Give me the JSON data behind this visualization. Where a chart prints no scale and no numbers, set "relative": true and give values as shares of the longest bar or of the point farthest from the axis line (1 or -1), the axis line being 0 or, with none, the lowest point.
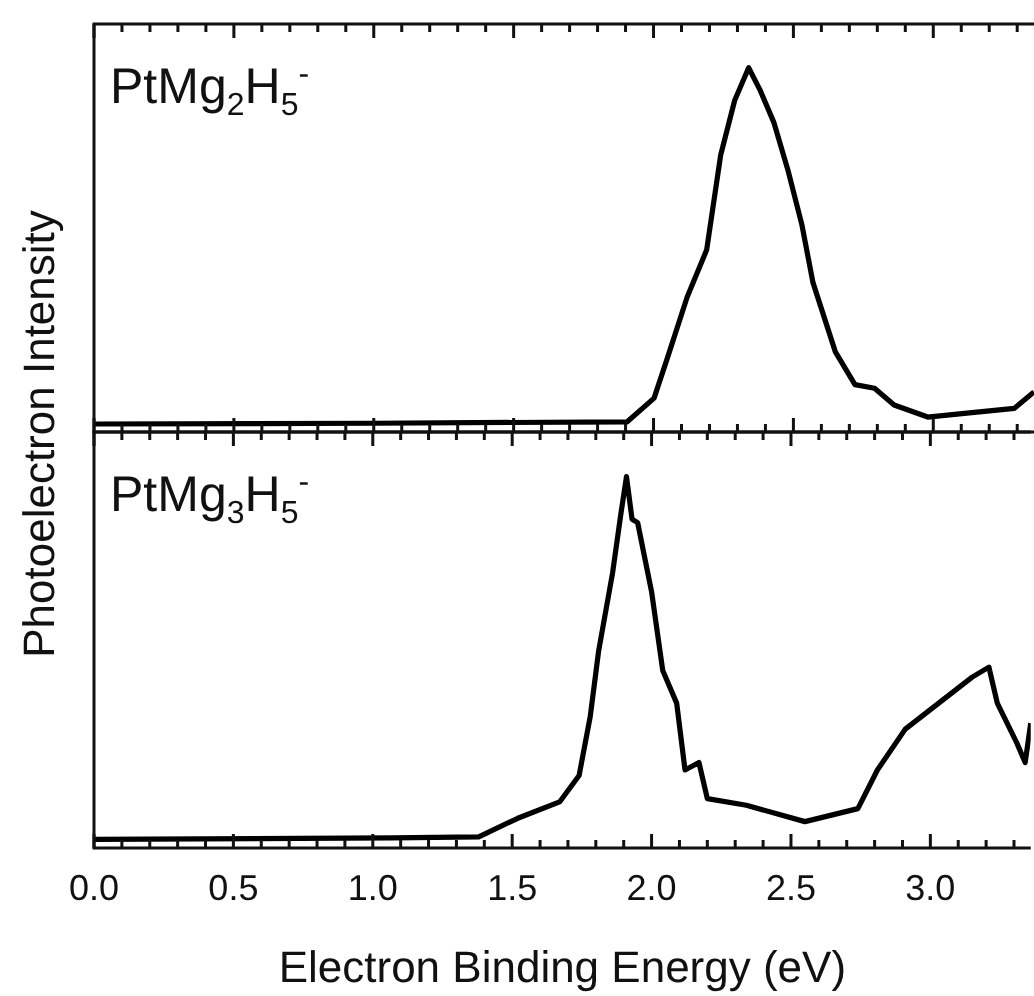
{
  "chart_data": [
    {
      "type": "line",
      "relative": true,
      "ylabel": "Photoelectron Intensity",
      "annotations": [
        "PtMg$_{2}$H$_{5}$$^{-}$"
      ],
      "xlim": [
        0,
        3.36
      ],
      "tick_labels": false,
      "marker": "none",
      "legend": false,
      "grid": false,
      "xticks": [
        0,
        {
          "value": 0.1,
          "label": null
        },
        {
          "value": 0.2,
          "label": null
        },
        {
          "value": 0.3,
          "label": null
        },
        {
          "value": 0.4,
          "label": null
        },
        0.5,
        {
          "value": 0.6,
          "label": null
        },
        {
          "value": 0.7,
          "label": null
        },
        {
          "value": 0.8,
          "label": null
        },
        {
          "value": 0.9,
          "label": null
        },
        1,
        {
          "value": 1.1,
          "label": null
        },
        {
          "value": 1.2,
          "label": null
        },
        {
          "value": 1.3,
          "label": null
        },
        {
          "value": 1.4,
          "label": null
        },
        1.5,
        {
          "value": 1.6,
          "label": null
        },
        {
          "value": 1.7,
          "label": null
        },
        {
          "value": 1.8,
          "label": null
        },
        {
          "value": 1.9,
          "label": null
        },
        2,
        {
          "value": 2.1,
          "label": null
        },
        {
          "value": 2.2,
          "label": null
        },
        {
          "value": 2.3,
          "label": null
        },
        {
          "value": 2.4,
          "label": null
        },
        2.5,
        {
          "value": 2.6,
          "label": null
        },
        {
          "value": 2.7,
          "label": null
        },
        {
          "value": 2.8,
          "label": null
        },
        {
          "value": 2.9,
          "label": null
        },
        3,
        {
          "value": 3.1,
          "label": null
        },
        {
          "value": 3.2,
          "label": null
        },
        {
          "value": 3.3,
          "label": null
        }
      ],
      "series": [
        {
          "color": "#000000",
          "x": [
            0,
            1.0,
            1.906,
            2.002,
            2.05,
            2.12,
            2.19,
            2.24,
            2.29,
            2.34,
            2.38,
            2.43,
            2.48,
            2.53,
            2.57,
            2.65,
            2.72,
            2.79,
            2.86,
            2.98,
            3.12,
            3.29,
            3.36
          ],
          "values": [
            0.022,
            0.024,
            0.028,
            0.093,
            0.204,
            0.37,
            0.5,
            0.76,
            0.91,
            1.0,
            0.94,
            0.85,
            0.72,
            0.57,
            0.41,
            0.22,
            0.13,
            0.12,
            0.074,
            0.041,
            0.052,
            0.065,
            0.11
          ]
        }
      ]
    },
    {
      "type": "line",
      "relative": true,
      "xlabel": "Electron Binding Energy (eV)",
      "annotations": [
        "PtMg$_{3}$H$_{5}$$^{-}$"
      ],
      "xlim": [
        0,
        3.36
      ],
      "tick_labels": "x",
      "marker": "none",
      "legend": false,
      "grid": false,
      "xticks": [
        {
          "value": 0,
          "label": "0.0"
        },
        {
          "value": 0.1,
          "label": null
        },
        {
          "value": 0.2,
          "label": null
        },
        {
          "value": 0.3,
          "label": null
        },
        {
          "value": 0.4,
          "label": null
        },
        0.5,
        {
          "value": 0.6,
          "label": null
        },
        {
          "value": 0.7,
          "label": null
        },
        {
          "value": 0.8,
          "label": null
        },
        {
          "value": 0.9,
          "label": null
        },
        {
          "value": 1,
          "label": "1.0"
        },
        {
          "value": 1.1,
          "label": null
        },
        {
          "value": 1.2,
          "label": null
        },
        {
          "value": 1.3,
          "label": null
        },
        {
          "value": 1.4,
          "label": null
        },
        1.5,
        {
          "value": 1.6,
          "label": null
        },
        {
          "value": 1.7,
          "label": null
        },
        {
          "value": 1.8,
          "label": null
        },
        {
          "value": 1.9,
          "label": null
        },
        {
          "value": 2,
          "label": "2.0"
        },
        {
          "value": 2.1,
          "label": null
        },
        {
          "value": 2.2,
          "label": null
        },
        {
          "value": 2.3,
          "label": null
        },
        {
          "value": 2.4,
          "label": null
        },
        2.5,
        {
          "value": 2.6,
          "label": null
        },
        {
          "value": 2.7,
          "label": null
        },
        {
          "value": 2.8,
          "label": null
        },
        {
          "value": 2.9,
          "label": null
        },
        {
          "value": 3,
          "label": "3.0"
        },
        {
          "value": 3.1,
          "label": null
        },
        {
          "value": 3.2,
          "label": null
        },
        {
          "value": 3.3,
          "label": null
        }
      ],
      "series": [
        {
          "color": "#000000",
          "x": [
            0,
            1.07,
            1.38,
            1.52,
            1.67,
            1.74,
            1.78,
            1.81,
            1.86,
            1.89,
            1.91,
            1.93,
            1.95,
            2.0,
            2.04,
            2.09,
            2.12,
            2.17,
            2.2,
            2.34,
            2.55,
            2.74,
            2.81,
            2.91,
            3.03,
            3.15,
            3.21,
            3.24,
            3.31,
            3.34,
            3.36
          ],
          "values": [
            0.023,
            0.027,
            0.03,
            0.08,
            0.124,
            0.195,
            0.354,
            0.53,
            0.74,
            0.9,
            1.0,
            0.885,
            0.876,
            0.69,
            0.478,
            0.39,
            0.21,
            0.23,
            0.133,
            0.115,
            0.071,
            0.106,
            0.21,
            0.32,
            0.39,
            0.46,
            0.487,
            0.39,
            0.283,
            0.23,
            0.336
          ]
        }
      ]
    }
  ]
}
